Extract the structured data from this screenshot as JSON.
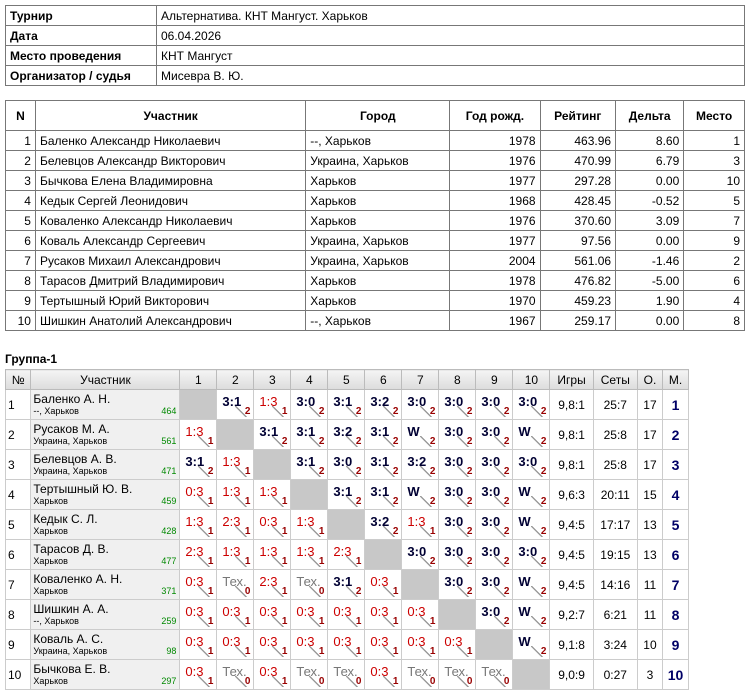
{
  "info": {
    "rows": [
      [
        "Турнир",
        "Альтернатива. КНТ Мангуст. Харьков"
      ],
      [
        "Дата",
        "06.04.2026"
      ],
      [
        "Место проведения",
        "КНТ Мангуст"
      ],
      [
        "Организатор / судья",
        "Мисевра В. Ю."
      ]
    ]
  },
  "participants": {
    "columns": [
      "N",
      "Участник",
      "Город",
      "Год рожд.",
      "Рейтинг",
      "Дельта",
      "Место"
    ],
    "rows": [
      [
        "1",
        "Баленко Александр Николаевич",
        "--, Харьков",
        "1978",
        "463.96",
        "8.60",
        "1"
      ],
      [
        "2",
        "Белевцов Александр Викторович",
        "Украина, Харьков",
        "1976",
        "470.99",
        "6.79",
        "3"
      ],
      [
        "3",
        "Бычкова Елена Владимировна",
        "Харьков",
        "1977",
        "297.28",
        "0.00",
        "10"
      ],
      [
        "4",
        "Кедык Сергей Леонидович",
        "Харьков",
        "1968",
        "428.45",
        "-0.52",
        "5"
      ],
      [
        "5",
        "Коваленко Александр Николаевич",
        "Харьков",
        "1976",
        "370.60",
        "3.09",
        "7"
      ],
      [
        "6",
        "Коваль Александр Сергеевич",
        "Украина, Харьков",
        "1977",
        "97.56",
        "0.00",
        "9"
      ],
      [
        "7",
        "Русаков Михаил Александрович",
        "Украина, Харьков",
        "2004",
        "561.06",
        "-1.46",
        "2"
      ],
      [
        "8",
        "Тарасов Дмитрий Владимирович",
        "Харьков",
        "1978",
        "476.82",
        "-5.00",
        "6"
      ],
      [
        "9",
        "Тертышный Юрий Викторович",
        "Харьков",
        "1970",
        "459.23",
        "1.90",
        "4"
      ],
      [
        "10",
        "Шишкин Анатолий Александрович",
        "--, Харьков",
        "1967",
        "259.17",
        "0.00",
        "8"
      ]
    ]
  },
  "group": {
    "title": "Группа-1",
    "columns": [
      "№",
      "Участник",
      "1",
      "2",
      "3",
      "4",
      "5",
      "6",
      "7",
      "8",
      "9",
      "10",
      "Игры",
      "Сеты",
      "О.",
      "М."
    ],
    "rows": [
      {
        "num": "1",
        "name": "Баленко А. Н.",
        "city": "--, Харьков",
        "rating": "464",
        "results": [
          null,
          {
            "score": "3:1",
            "points": 2
          },
          {
            "score": "1:3",
            "points": 1
          },
          {
            "score": "3:0",
            "points": 2
          },
          {
            "score": "3:1",
            "points": 2
          },
          {
            "score": "3:2",
            "points": 2
          },
          {
            "score": "3:0",
            "points": 2
          },
          {
            "score": "3:0",
            "points": 2
          },
          {
            "score": "3:0",
            "points": 2
          },
          {
            "score": "3:0",
            "points": 2
          }
        ],
        "games": "9,8:1",
        "sets": "25:7",
        "total": "17",
        "place": "1"
      },
      {
        "num": "2",
        "name": "Русаков М. А.",
        "city": "Украина, Харьков",
        "rating": "561",
        "results": [
          {
            "score": "1:3",
            "points": 1
          },
          null,
          {
            "score": "3:1",
            "points": 2
          },
          {
            "score": "3:1",
            "points": 2
          },
          {
            "score": "3:2",
            "points": 2
          },
          {
            "score": "3:1",
            "points": 2
          },
          {
            "score": "W",
            "points": 2
          },
          {
            "score": "3:0",
            "points": 2
          },
          {
            "score": "3:0",
            "points": 2
          },
          {
            "score": "W",
            "points": 2
          }
        ],
        "games": "9,8:1",
        "sets": "25:8",
        "total": "17",
        "place": "2"
      },
      {
        "num": "3",
        "name": "Белевцов А. В.",
        "city": "Украина, Харьков",
        "rating": "471",
        "results": [
          {
            "score": "3:1",
            "points": 2
          },
          {
            "score": "1:3",
            "points": 1
          },
          null,
          {
            "score": "3:1",
            "points": 2
          },
          {
            "score": "3:0",
            "points": 2
          },
          {
            "score": "3:1",
            "points": 2
          },
          {
            "score": "3:2",
            "points": 2
          },
          {
            "score": "3:0",
            "points": 2
          },
          {
            "score": "3:0",
            "points": 2
          },
          {
            "score": "3:0",
            "points": 2
          }
        ],
        "games": "9,8:1",
        "sets": "25:8",
        "total": "17",
        "place": "3"
      },
      {
        "num": "4",
        "name": "Тертышный Ю. В.",
        "city": "Харьков",
        "rating": "459",
        "results": [
          {
            "score": "0:3",
            "points": 1
          },
          {
            "score": "1:3",
            "points": 1
          },
          {
            "score": "1:3",
            "points": 1
          },
          null,
          {
            "score": "3:1",
            "points": 2
          },
          {
            "score": "3:1",
            "points": 2
          },
          {
            "score": "W",
            "points": 2
          },
          {
            "score": "3:0",
            "points": 2
          },
          {
            "score": "3:0",
            "points": 2
          },
          {
            "score": "W",
            "points": 2
          }
        ],
        "games": "9,6:3",
        "sets": "20:11",
        "total": "15",
        "place": "4"
      },
      {
        "num": "5",
        "name": "Кедык С. Л.",
        "city": "Харьков",
        "rating": "428",
        "results": [
          {
            "score": "1:3",
            "points": 1
          },
          {
            "score": "2:3",
            "points": 1
          },
          {
            "score": "0:3",
            "points": 1
          },
          {
            "score": "1:3",
            "points": 1
          },
          null,
          {
            "score": "3:2",
            "points": 2
          },
          {
            "score": "1:3",
            "points": 1
          },
          {
            "score": "3:0",
            "points": 2
          },
          {
            "score": "3:0",
            "points": 2
          },
          {
            "score": "W",
            "points": 2
          }
        ],
        "games": "9,4:5",
        "sets": "17:17",
        "total": "13",
        "place": "5"
      },
      {
        "num": "6",
        "name": "Тарасов Д. В.",
        "city": "Харьков",
        "rating": "477",
        "results": [
          {
            "score": "2:3",
            "points": 1
          },
          {
            "score": "1:3",
            "points": 1
          },
          {
            "score": "1:3",
            "points": 1
          },
          {
            "score": "1:3",
            "points": 1
          },
          {
            "score": "2:3",
            "points": 1
          },
          null,
          {
            "score": "3:0",
            "points": 2
          },
          {
            "score": "3:0",
            "points": 2
          },
          {
            "score": "3:0",
            "points": 2
          },
          {
            "score": "3:0",
            "points": 2
          }
        ],
        "games": "9,4:5",
        "sets": "19:15",
        "total": "13",
        "place": "6"
      },
      {
        "num": "7",
        "name": "Коваленко А. Н.",
        "city": "Харьков",
        "rating": "371",
        "results": [
          {
            "score": "0:3",
            "points": 1
          },
          {
            "score": "Тех.",
            "points": 0
          },
          {
            "score": "2:3",
            "points": 1
          },
          {
            "score": "Тех.",
            "points": 0
          },
          {
            "score": "3:1",
            "points": 2
          },
          {
            "score": "0:3",
            "points": 1
          },
          null,
          {
            "score": "3:0",
            "points": 2
          },
          {
            "score": "3:0",
            "points": 2
          },
          {
            "score": "W",
            "points": 2
          }
        ],
        "games": "9,4:5",
        "sets": "14:16",
        "total": "11",
        "place": "7"
      },
      {
        "num": "8",
        "name": "Шишкин А. А.",
        "city": "--, Харьков",
        "rating": "259",
        "results": [
          {
            "score": "0:3",
            "points": 1
          },
          {
            "score": "0:3",
            "points": 1
          },
          {
            "score": "0:3",
            "points": 1
          },
          {
            "score": "0:3",
            "points": 1
          },
          {
            "score": "0:3",
            "points": 1
          },
          {
            "score": "0:3",
            "points": 1
          },
          {
            "score": "0:3",
            "points": 1
          },
          null,
          {
            "score": "3:0",
            "points": 2
          },
          {
            "score": "W",
            "points": 2
          }
        ],
        "games": "9,2:7",
        "sets": "6:21",
        "total": "11",
        "place": "8"
      },
      {
        "num": "9",
        "name": "Коваль А. С.",
        "city": "Украина, Харьков",
        "rating": "98",
        "results": [
          {
            "score": "0:3",
            "points": 1
          },
          {
            "score": "0:3",
            "points": 1
          },
          {
            "score": "0:3",
            "points": 1
          },
          {
            "score": "0:3",
            "points": 1
          },
          {
            "score": "0:3",
            "points": 1
          },
          {
            "score": "0:3",
            "points": 1
          },
          {
            "score": "0:3",
            "points": 1
          },
          {
            "score": "0:3",
            "points": 1
          },
          null,
          {
            "score": "W",
            "points": 2
          }
        ],
        "games": "9,1:8",
        "sets": "3:24",
        "total": "10",
        "place": "9"
      },
      {
        "num": "10",
        "name": "Бычкова Е. В.",
        "city": "Харьков",
        "rating": "297",
        "results": [
          {
            "score": "0:3",
            "points": 1
          },
          {
            "score": "Тех.",
            "points": 0
          },
          {
            "score": "0:3",
            "points": 1
          },
          {
            "score": "Тех.",
            "points": 0
          },
          {
            "score": "Тех.",
            "points": 0
          },
          {
            "score": "0:3",
            "points": 1
          },
          {
            "score": "Тех.",
            "points": 0
          },
          {
            "score": "Тех.",
            "points": 0
          },
          {
            "score": "Тех.",
            "points": 0
          },
          null
        ],
        "games": "9,0:9",
        "sets": "0:27",
        "total": "3",
        "place": "10"
      }
    ]
  }
}
